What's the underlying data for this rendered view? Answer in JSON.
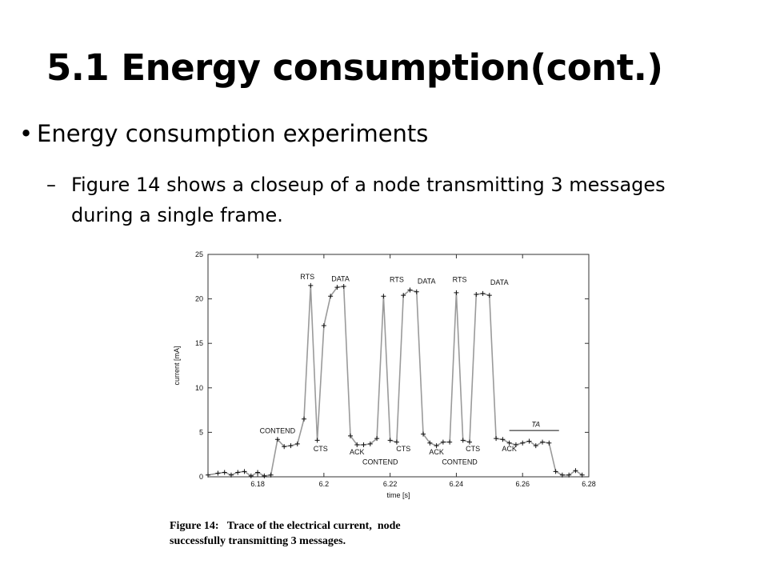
{
  "slide": {
    "title": "5.1 Energy consumption(cont.)",
    "bullet": "Energy consumption experiments",
    "sub_bullet": "Figure 14 shows a closeup of a node transmitting 3 messages during a single frame.",
    "bullet_symbol": "•",
    "dash_symbol": "–",
    "caption_line1": "Figure 14:   Trace of the electrical current,  node",
    "caption_line2": "successfully transmitting 3 messages."
  },
  "chart_data": {
    "type": "line",
    "xlabel": "time [s]",
    "ylabel": "current [mA]",
    "xlim": [
      6.165,
      6.28
    ],
    "ylim": [
      0,
      25
    ],
    "xticks": [
      6.18,
      6.2,
      6.22,
      6.24,
      6.26,
      6.28
    ],
    "xtick_labels": [
      "6.18",
      "6.2",
      "6.22",
      "6.24",
      "6.26",
      "6.28"
    ],
    "yticks": [
      0,
      5,
      10,
      15,
      20,
      25
    ],
    "ytick_labels": [
      "0",
      "5",
      "10",
      "15",
      "20",
      "25"
    ],
    "grid": false,
    "line_color": "#9a9a9a",
    "marker": "+",
    "series": [
      {
        "x": [
          6.165,
          6.168,
          6.17,
          6.172,
          6.174,
          6.176,
          6.178,
          6.18,
          6.182,
          6.184,
          6.186,
          6.188,
          6.19,
          6.192,
          6.194,
          6.196,
          6.198,
          6.2,
          6.202,
          6.204,
          6.206,
          6.208,
          6.21,
          6.212,
          6.214,
          6.216,
          6.218,
          6.22,
          6.222,
          6.224,
          6.226,
          6.228,
          6.23,
          6.232,
          6.234,
          6.236,
          6.238,
          6.24,
          6.242,
          6.244,
          6.246,
          6.248,
          6.25,
          6.252,
          6.254,
          6.256,
          6.258,
          6.26,
          6.262,
          6.264,
          6.266,
          6.268,
          6.27,
          6.272,
          6.274,
          6.276,
          6.278
        ],
        "y": [
          0.2,
          0.4,
          0.5,
          0.2,
          0.5,
          0.6,
          0.1,
          0.5,
          0.1,
          0.2,
          4.2,
          3.4,
          3.5,
          3.7,
          6.5,
          21.5,
          4.1,
          17.0,
          20.3,
          21.3,
          21.4,
          4.6,
          3.6,
          3.6,
          3.7,
          4.3,
          20.3,
          4.1,
          3.9,
          20.4,
          21.0,
          20.8,
          4.8,
          3.8,
          3.5,
          3.9,
          3.9,
          20.7,
          4.1,
          3.9,
          20.5,
          20.6,
          20.4,
          4.3,
          4.2,
          3.8,
          3.6,
          3.8,
          4.0,
          3.5,
          3.9,
          3.8,
          0.6,
          0.2,
          0.2,
          0.7,
          0.2
        ]
      }
    ],
    "annotations": [
      {
        "text": "CONTEND",
        "x": 6.186,
        "y": 4.9
      },
      {
        "text": "RTS",
        "x": 6.195,
        "y": 22.2
      },
      {
        "text": "DATA",
        "x": 6.205,
        "y": 22.0
      },
      {
        "text": "CTS",
        "x": 6.199,
        "y": 2.9
      },
      {
        "text": "ACK",
        "x": 6.21,
        "y": 2.5
      },
      {
        "text": "CONTEND",
        "x": 6.217,
        "y": 1.4
      },
      {
        "text": "RTS",
        "x": 6.222,
        "y": 21.9
      },
      {
        "text": "CTS",
        "x": 6.224,
        "y": 2.9
      },
      {
        "text": "DATA",
        "x": 6.231,
        "y": 21.7
      },
      {
        "text": "ACK",
        "x": 6.234,
        "y": 2.5
      },
      {
        "text": "CONTEND",
        "x": 6.241,
        "y": 1.4
      },
      {
        "text": "RTS",
        "x": 6.241,
        "y": 21.9
      },
      {
        "text": "CTS",
        "x": 6.245,
        "y": 2.9
      },
      {
        "text": "DATA",
        "x": 6.253,
        "y": 21.6
      },
      {
        "text": "ACK",
        "x": 6.256,
        "y": 2.9
      },
      {
        "text": "TA",
        "x": 6.264,
        "y": 5.6
      }
    ],
    "ta_bracket": {
      "x_start": 6.256,
      "x_end": 6.271,
      "y": 5.2
    }
  }
}
